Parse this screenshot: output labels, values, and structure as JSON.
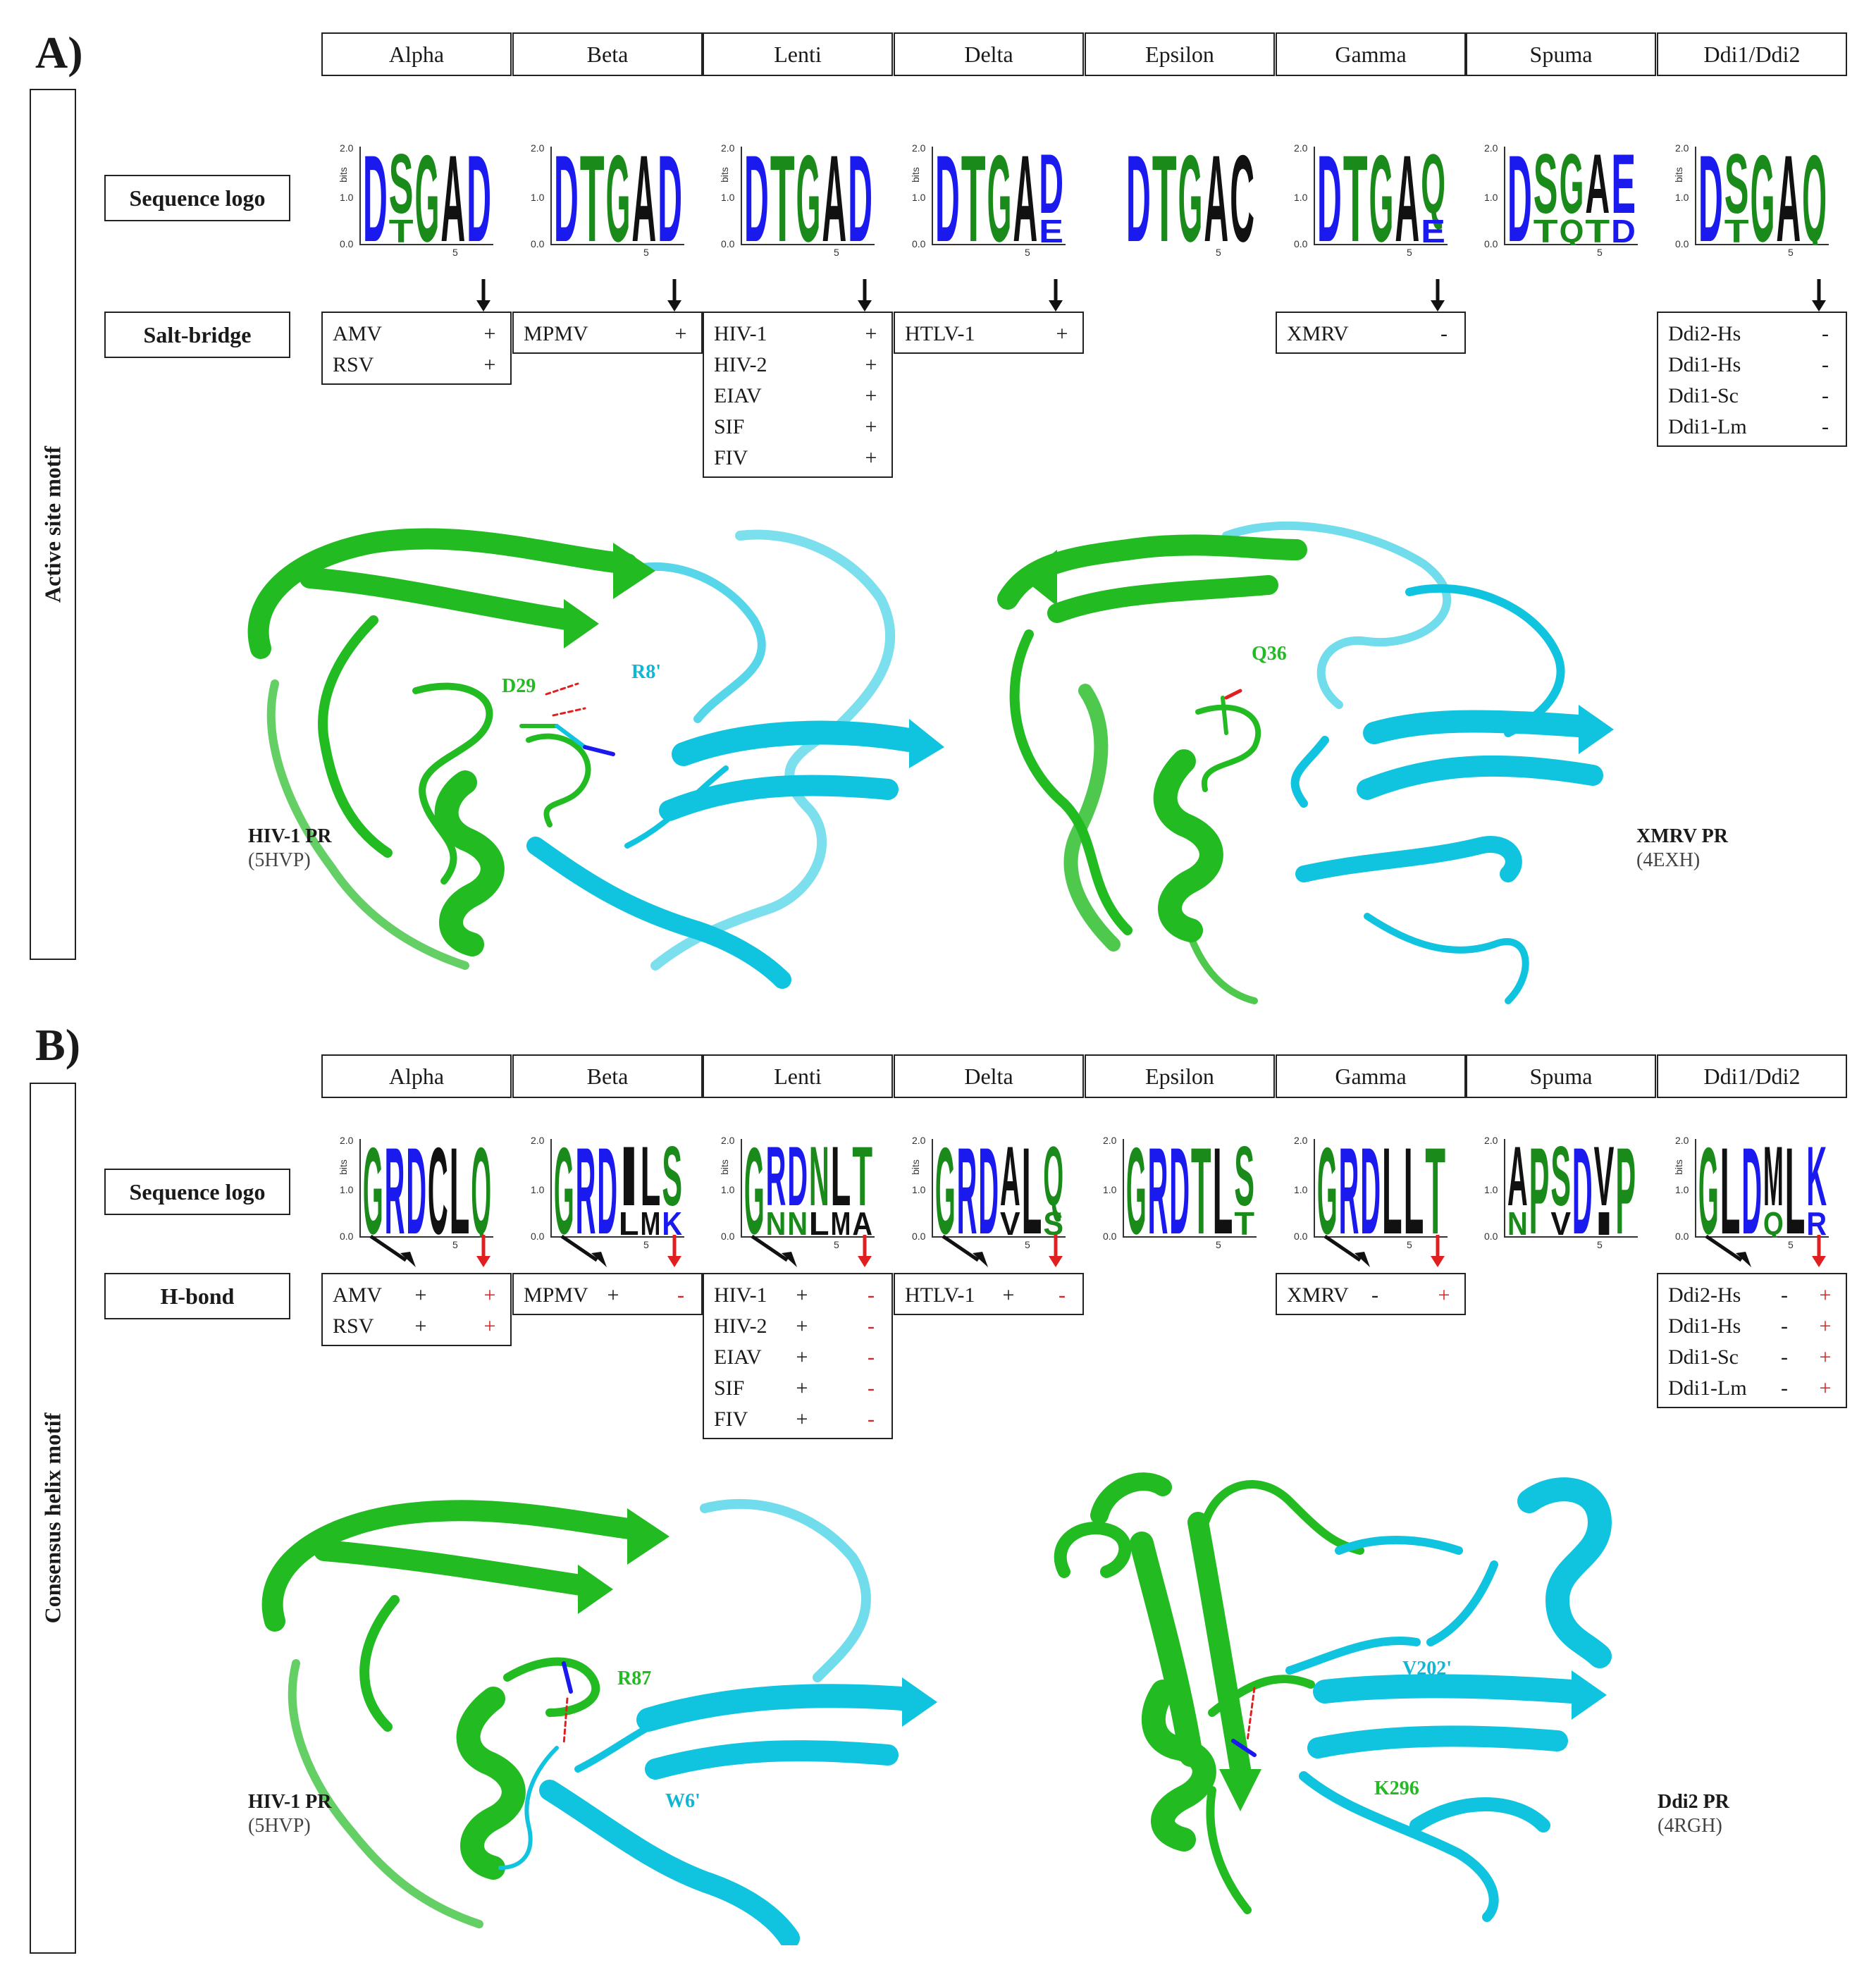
{
  "panels": [
    {
      "letter": "A)",
      "side_title": "Active site motif",
      "families": [
        "Alpha",
        "Beta",
        "Lenti",
        "Delta",
        "Epsilon",
        "Gamma",
        "Spuma",
        "Ddi1/Ddi2"
      ],
      "logo_label": "Sequence logo",
      "interaction_label": "Salt-bridge",
      "logos": [
        {
          "letters": [
            "D",
            "S",
            "G",
            "A",
            "D"
          ],
          "stack2": [
            "",
            "T",
            "",
            "",
            ""
          ]
        },
        {
          "letters": [
            "D",
            "T",
            "G",
            "A",
            "D"
          ],
          "stack2": [
            "",
            "",
            "",
            "",
            ""
          ]
        },
        {
          "letters": [
            "D",
            "T",
            "G",
            "A",
            "D"
          ],
          "stack2": [
            "",
            "",
            "",
            "",
            ""
          ]
        },
        {
          "letters": [
            "D",
            "T",
            "G",
            "A",
            "D"
          ],
          "stack2": [
            "",
            "",
            "",
            "",
            "E"
          ]
        },
        {
          "letters": [
            "D",
            "T",
            "G",
            "A",
            "C"
          ],
          "stack2": [
            "",
            "",
            "",
            "",
            ""
          ]
        },
        {
          "letters": [
            "D",
            "T",
            "G",
            "A",
            "Q"
          ],
          "stack2": [
            "",
            "",
            "",
            "",
            "E"
          ]
        },
        {
          "letters": [
            "D",
            "S",
            "G",
            "A",
            "E"
          ],
          "stack2": [
            "",
            "T",
            "Q",
            "T",
            "D"
          ]
        },
        {
          "letters": [
            "D",
            "S",
            "G",
            "A",
            "Q"
          ],
          "stack2": [
            "",
            "T",
            "",
            "",
            ""
          ]
        }
      ],
      "entries": [
        {
          "rows": [
            {
              "name": "AMV",
              "s1": "+"
            },
            {
              "name": "RSV",
              "s1": "+"
            }
          ]
        },
        {
          "rows": [
            {
              "name": "MPMV",
              "s1": "+"
            }
          ]
        },
        {
          "rows": [
            {
              "name": "HIV-1",
              "s1": "+"
            },
            {
              "name": "HIV-2",
              "s1": "+"
            },
            {
              "name": "EIAV",
              "s1": "+"
            },
            {
              "name": "SIF",
              "s1": "+"
            },
            {
              "name": "FIV",
              "s1": "+"
            }
          ]
        },
        {
          "rows": [
            {
              "name": "HTLV-1",
              "s1": "+"
            }
          ]
        },
        {
          "rows": []
        },
        {
          "rows": [
            {
              "name": "XMRV",
              "s1": "-"
            }
          ]
        },
        {
          "rows": []
        },
        {
          "rows": [
            {
              "name": "Ddi2-Hs",
              "s1": "-"
            },
            {
              "name": "Ddi1-Hs",
              "s1": "-"
            },
            {
              "name": "Ddi1-Sc",
              "s1": "-"
            },
            {
              "name": "Ddi1-Lm",
              "s1": "-"
            }
          ]
        }
      ],
      "structures": [
        {
          "name": "HIV-1 PR",
          "pdb": "(5HVP)",
          "res_green": "D29",
          "res_cyan": "R8'"
        },
        {
          "name": "XMRV PR",
          "pdb": "(4EXH)",
          "res_green": "Q36",
          "res_cyan": ""
        }
      ]
    },
    {
      "letter": "B)",
      "side_title": "Consensus helix motif",
      "families": [
        "Alpha",
        "Beta",
        "Lenti",
        "Delta",
        "Epsilon",
        "Gamma",
        "Spuma",
        "Ddi1/Ddi2"
      ],
      "logo_label": "Sequence logo",
      "interaction_label": "H-bond",
      "logos": [
        {
          "letters": [
            "G",
            "R",
            "D",
            "C",
            "L",
            "Q"
          ],
          "stack2": [
            "",
            "",
            "",
            "",
            "",
            ""
          ]
        },
        {
          "letters": [
            "G",
            "R",
            "D",
            "I",
            "L",
            "S"
          ],
          "stack2": [
            "",
            "",
            "",
            "L",
            "M",
            "K"
          ]
        },
        {
          "letters": [
            "G",
            "R",
            "D",
            "N",
            "L",
            "T"
          ],
          "stack2": [
            "",
            "N",
            "N",
            "L",
            "M",
            "A"
          ]
        },
        {
          "letters": [
            "G",
            "R",
            "D",
            "A",
            "L",
            "Q"
          ],
          "stack2": [
            "",
            "",
            "",
            "V",
            "",
            "S"
          ]
        },
        {
          "letters": [
            "G",
            "R",
            "D",
            "T",
            "L",
            "S"
          ],
          "stack2": [
            "",
            "",
            "",
            "",
            "",
            "T"
          ]
        },
        {
          "letters": [
            "G",
            "R",
            "D",
            "L",
            "L",
            "T"
          ],
          "stack2": [
            "",
            "",
            "",
            "",
            "",
            ""
          ]
        },
        {
          "letters": [
            "A",
            "P",
            "S",
            "D",
            "V",
            "P"
          ],
          "stack2": [
            "N",
            "",
            "V",
            "",
            "I",
            ""
          ]
        },
        {
          "letters": [
            "G",
            "L",
            "D",
            "M",
            "L",
            "K"
          ],
          "stack2": [
            "",
            "",
            "",
            "Q",
            "",
            "R"
          ]
        }
      ],
      "entries": [
        {
          "rows": [
            {
              "name": "AMV",
              "s1": "+",
              "s2": "+"
            },
            {
              "name": "RSV",
              "s1": "+",
              "s2": "+"
            }
          ]
        },
        {
          "rows": [
            {
              "name": "MPMV",
              "s1": "+",
              "s2": "-"
            }
          ]
        },
        {
          "rows": [
            {
              "name": "HIV-1",
              "s1": "+",
              "s2": "-"
            },
            {
              "name": "HIV-2",
              "s1": "+",
              "s2": "-"
            },
            {
              "name": "EIAV",
              "s1": "+",
              "s2": "-"
            },
            {
              "name": "SIF",
              "s1": "+",
              "s2": "-"
            },
            {
              "name": "FIV",
              "s1": "+",
              "s2": "-"
            }
          ]
        },
        {
          "rows": [
            {
              "name": "HTLV-1",
              "s1": "+",
              "s2": "-"
            }
          ]
        },
        {
          "rows": []
        },
        {
          "rows": [
            {
              "name": "XMRV",
              "s1": "-",
              "s2": "+"
            }
          ]
        },
        {
          "rows": []
        },
        {
          "rows": [
            {
              "name": "Ddi2-Hs",
              "s1": "-",
              "s2": "+"
            },
            {
              "name": "Ddi1-Hs",
              "s1": "-",
              "s2": "+"
            },
            {
              "name": "Ddi1-Sc",
              "s1": "-",
              "s2": "+"
            },
            {
              "name": "Ddi1-Lm",
              "s1": "-",
              "s2": "+"
            }
          ]
        }
      ],
      "structures": [
        {
          "name": "HIV-1 PR",
          "pdb": "(5HVP)",
          "res_green": "R87",
          "res_cyan": "W6'"
        },
        {
          "name": "Ddi2 PR",
          "pdb": "(4RGH)",
          "res_green": "K296",
          "res_cyan": "V202'"
        }
      ]
    }
  ],
  "logo_axis_ticks": [
    "2.0",
    "1.0",
    "0.0"
  ],
  "logo_axis_unit": "bits",
  "logo_position_tick": "5",
  "colors": {
    "green": "#22bb22",
    "cyan": "#10c4e0",
    "blue": "#1a1aee",
    "black": "#111111",
    "red": "#e02020"
  }
}
